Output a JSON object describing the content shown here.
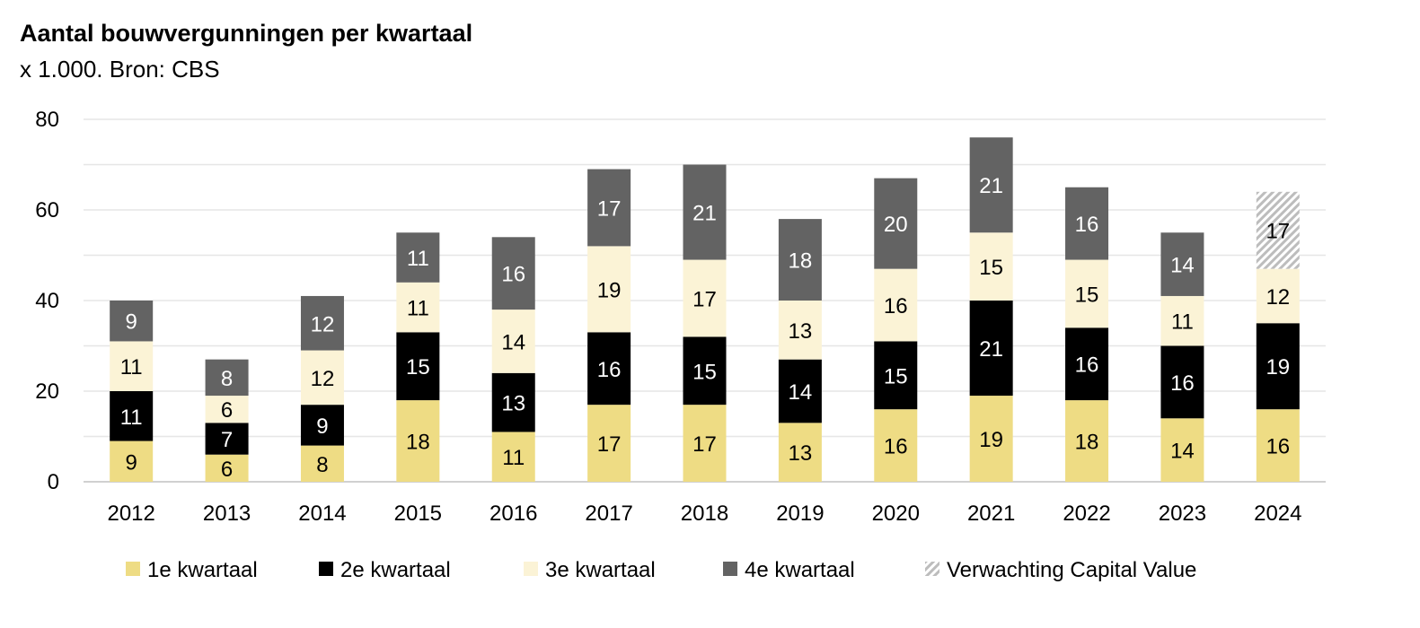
{
  "chart_data": {
    "type": "bar",
    "stacked": true,
    "title": "Aantal bouwvergunningen per kwartaal",
    "subtitle": "x 1.000. Bron: CBS",
    "xlabel": "",
    "ylabel": "",
    "ylim": [
      0,
      80
    ],
    "yticks": [
      0,
      20,
      40,
      60,
      80
    ],
    "grid": true,
    "legend_position": "bottom",
    "categories": [
      "2012",
      "2013",
      "2014",
      "2015",
      "2016",
      "2017",
      "2018",
      "2019",
      "2020",
      "2021",
      "2022",
      "2023",
      "2024"
    ],
    "series": [
      {
        "name": "1e kwartaal",
        "color": "#EEDC84",
        "label_color": "#000000",
        "values": [
          9,
          6,
          8,
          18,
          11,
          17,
          17,
          13,
          16,
          19,
          18,
          14,
          16
        ]
      },
      {
        "name": "2e kwartaal",
        "color": "#000000",
        "label_color": "#FFFFFF",
        "values": [
          11,
          7,
          9,
          15,
          13,
          16,
          15,
          14,
          15,
          21,
          16,
          16,
          19
        ]
      },
      {
        "name": "3e kwartaal",
        "color": "#FBF3D6",
        "label_color": "#000000",
        "values": [
          11,
          6,
          12,
          11,
          14,
          19,
          17,
          13,
          16,
          15,
          15,
          11,
          12
        ]
      },
      {
        "name": "4e kwartaal",
        "color": "#636363",
        "label_color": "#FFFFFF",
        "values": [
          9,
          8,
          12,
          11,
          16,
          17,
          21,
          18,
          20,
          21,
          16,
          14,
          null
        ]
      },
      {
        "name": "Verwachting Capital Value",
        "color": "hatched-gray",
        "label_color": "#000000",
        "values": [
          null,
          null,
          null,
          null,
          null,
          null,
          null,
          null,
          null,
          null,
          null,
          null,
          17
        ]
      }
    ]
  }
}
